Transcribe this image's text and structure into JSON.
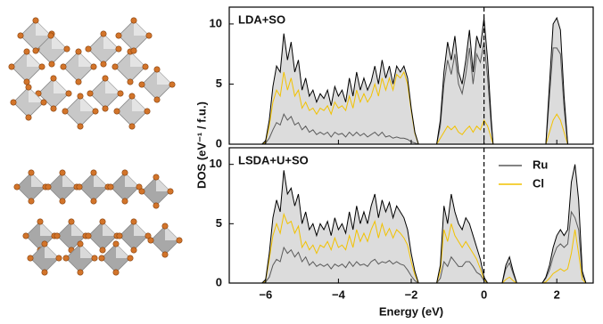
{
  "chart_data": [
    {
      "type": "line",
      "title": "LDA+SO",
      "ylabel": "DOS (eV⁻¹ / f.u.)",
      "xlim": [
        -7,
        3
      ],
      "ylim": [
        0,
        11.4
      ],
      "yticks": [
        0,
        5,
        10
      ],
      "vline": 0,
      "x": [
        -7,
        -6.1,
        -6,
        -5.9,
        -5.8,
        -5.7,
        -5.6,
        -5.5,
        -5.4,
        -5.3,
        -5.2,
        -5.1,
        -5,
        -4.9,
        -4.8,
        -4.7,
        -4.6,
        -4.5,
        -4.4,
        -4.3,
        -4.2,
        -4.1,
        -4,
        -3.9,
        -3.8,
        -3.7,
        -3.6,
        -3.5,
        -3.4,
        -3.3,
        -3.2,
        -3.1,
        -3,
        -2.9,
        -2.8,
        -2.7,
        -2.6,
        -2.5,
        -2.4,
        -2.3,
        -2.2,
        -2.1,
        -2,
        -1.9,
        -1.8,
        -1.3,
        -1.2,
        -1.1,
        -1,
        -0.9,
        -0.8,
        -0.7,
        -0.6,
        -0.5,
        -0.4,
        -0.3,
        -0.2,
        -0.1,
        0,
        0.1,
        0.2,
        0.25,
        1.7,
        1.8,
        1.9,
        2,
        2.1,
        2.2,
        2.3,
        3
      ],
      "series": [
        {
          "color": "#000000",
          "fill": "#dcdcdc",
          "values": [
            0,
            0,
            0.3,
            2,
            4.8,
            6.5,
            6,
            9.2,
            7,
            8.5,
            6,
            7,
            4.5,
            5.5,
            4,
            4.5,
            3.5,
            4.2,
            3.8,
            4.5,
            3.2,
            4.8,
            4,
            4.5,
            3.5,
            5.5,
            4,
            6,
            4.5,
            5.5,
            4.5,
            5.2,
            6.5,
            5,
            7,
            5.5,
            6.5,
            5,
            6.5,
            6,
            6.5,
            5.5,
            3,
            1,
            0,
            0,
            2,
            6,
            8.5,
            7,
            9,
            6,
            5,
            7,
            9.5,
            6,
            9,
            8,
            10.5,
            7,
            2,
            0,
            0,
            5,
            10,
            10.5,
            9.5,
            4,
            0,
            0
          ]
        },
        {
          "color": "#5a5a5a",
          "values": [
            0,
            0,
            0.1,
            0.5,
            1.2,
            1.8,
            1.6,
            2.5,
            2,
            2.3,
            1.6,
            1.8,
            1.2,
            1.5,
            1,
            1.2,
            0.8,
            1,
            0.8,
            1,
            0.6,
            1,
            0.8,
            0.9,
            0.6,
            1,
            0.7,
            1,
            0.7,
            0.9,
            0.6,
            0.8,
            1,
            0.7,
            1,
            0.6,
            0.7,
            0.5,
            0.6,
            0.5,
            0.5,
            0.4,
            0.2,
            0.1,
            0,
            0,
            1.5,
            5,
            7,
            5.8,
            7.5,
            5,
            4.2,
            5.8,
            8,
            5,
            7.5,
            6.8,
            8.5,
            5.5,
            1.5,
            0,
            0,
            4,
            8,
            8,
            7.5,
            3,
            0,
            0
          ]
        },
        {
          "color": "#f2c200",
          "values": [
            0,
            0,
            0.2,
            1.5,
            3.5,
            4.5,
            4,
            6,
            4.5,
            5.5,
            4,
            4.5,
            3,
            3.5,
            2.8,
            3,
            2.5,
            3,
            2.8,
            3.2,
            2.5,
            3.5,
            3,
            3.2,
            2.8,
            4,
            3,
            4.5,
            3.5,
            4.2,
            3.5,
            4,
            5,
            4,
            5.5,
            4.5,
            5.5,
            4.5,
            5.8,
            5.5,
            6,
            5,
            2.8,
            0.9,
            0,
            0,
            0.5,
            1,
            1.5,
            1.2,
            1.5,
            1,
            0.8,
            1.2,
            1.5,
            1,
            1.5,
            1.2,
            2,
            1.5,
            0.5,
            0,
            0,
            1,
            2,
            2.5,
            2,
            1,
            0,
            0
          ]
        }
      ]
    },
    {
      "type": "line",
      "title": "LSDA+U+SO",
      "xlabel": "Energy (eV)",
      "xlim": [
        -7,
        3
      ],
      "ylim": [
        0,
        11.4
      ],
      "yticks": [
        0,
        5,
        10
      ],
      "vline": 0,
      "legend": "upper right",
      "xticks": [
        {
          "value": -6,
          "label": "−6"
        },
        {
          "value": -4,
          "label": "−4"
        },
        {
          "value": -2,
          "label": "−2"
        },
        0,
        2
      ],
      "x": [
        -7,
        -6.1,
        -6,
        -5.9,
        -5.8,
        -5.7,
        -5.6,
        -5.5,
        -5.4,
        -5.3,
        -5.2,
        -5.1,
        -5,
        -4.9,
        -4.8,
        -4.7,
        -4.6,
        -4.5,
        -4.4,
        -4.3,
        -4.2,
        -4.1,
        -4,
        -3.9,
        -3.8,
        -3.7,
        -3.6,
        -3.5,
        -3.4,
        -3.3,
        -3.2,
        -3.1,
        -3,
        -2.9,
        -2.8,
        -2.7,
        -2.6,
        -2.5,
        -2.4,
        -2.3,
        -2.2,
        -2.1,
        -2,
        -1.9,
        -1.8,
        -1.3,
        -1.2,
        -1.1,
        -1,
        -0.9,
        -0.8,
        -0.7,
        -0.6,
        -0.5,
        -0.4,
        -0.3,
        -0.2,
        -0.1,
        0,
        0.1,
        0.5,
        0.6,
        0.7,
        0.8,
        0.9,
        1.6,
        1.7,
        1.8,
        1.9,
        2,
        2.1,
        2.2,
        2.3,
        2.4,
        2.5,
        2.6,
        2.7,
        2.8,
        3
      ],
      "series": [
        {
          "color": "#000000",
          "fill": "#dcdcdc",
          "values": [
            0,
            0,
            0.3,
            2.5,
            5.5,
            7,
            6,
            9.5,
            7.5,
            8,
            6.5,
            7.5,
            5,
            6,
            4.5,
            5,
            4,
            5,
            4.5,
            5.2,
            4,
            5.5,
            4.5,
            5,
            4.2,
            6,
            4.5,
            6.5,
            5,
            6,
            5,
            6.5,
            7.5,
            5.5,
            7,
            6,
            6.8,
            5.5,
            6.5,
            6,
            5.5,
            4.5,
            2.5,
            1,
            0,
            0,
            1.5,
            6.5,
            5,
            7.5,
            6,
            5,
            4.5,
            5.5,
            5,
            4,
            3,
            2,
            0.5,
            0,
            0,
            1.5,
            2.2,
            1,
            0,
            0,
            0.5,
            1.5,
            3,
            4,
            4.5,
            4,
            4.5,
            8.5,
            10,
            7,
            1,
            0,
            0
          ]
        },
        {
          "name": "Ru",
          "color": "#5a5a5a",
          "values": [
            0,
            0,
            0.1,
            0.5,
            1.5,
            2,
            1.8,
            3,
            2.5,
            2.8,
            2.2,
            2.6,
            1.8,
            2.2,
            1.5,
            1.8,
            1.4,
            1.6,
            1.4,
            1.6,
            1.2,
            1.6,
            1.4,
            1.6,
            1.3,
            1.8,
            1.4,
            1.8,
            1.5,
            1.6,
            1.4,
            1.8,
            2,
            1.6,
            1.8,
            1.7,
            1.9,
            1.6,
            1.8,
            1.6,
            1.5,
            1.1,
            0.6,
            0.2,
            0,
            0,
            0.4,
            1.8,
            1.4,
            2.2,
            1.8,
            1.4,
            1.4,
            1.8,
            1.8,
            1.4,
            0.9,
            0.7,
            0.2,
            0,
            0,
            1.2,
            1.7,
            0.8,
            0,
            0,
            0.4,
            1.1,
            2.2,
            3,
            3.3,
            3,
            3.3,
            6,
            5.5,
            4.5,
            0.7,
            0,
            0
          ]
        },
        {
          "name": "Cl",
          "color": "#f2c200",
          "values": [
            0,
            0,
            0.2,
            2,
            4,
            5,
            4.2,
            5.8,
            5,
            5.2,
            4.2,
            4.8,
            3,
            3.5,
            2.8,
            3.2,
            2.5,
            3.2,
            3,
            3.5,
            2.8,
            3.8,
            3,
            3.2,
            2.8,
            4,
            3,
            4.5,
            3.5,
            4.2,
            3.5,
            4.5,
            5.2,
            3.8,
            5,
            4,
            4.6,
            3.8,
            4.5,
            4.2,
            3.8,
            3.2,
            1.8,
            0.7,
            0,
            0,
            1,
            4.5,
            3.5,
            5,
            4,
            3.5,
            3,
            3.5,
            3,
            2.5,
            2,
            1.2,
            0.3,
            0,
            0,
            0.3,
            0.5,
            0.2,
            0,
            0,
            0.1,
            0.4,
            0.8,
            1,
            1.2,
            1,
            1.2,
            2.5,
            4.5,
            2.5,
            0.3,
            0,
            0
          ]
        }
      ]
    }
  ]
}
